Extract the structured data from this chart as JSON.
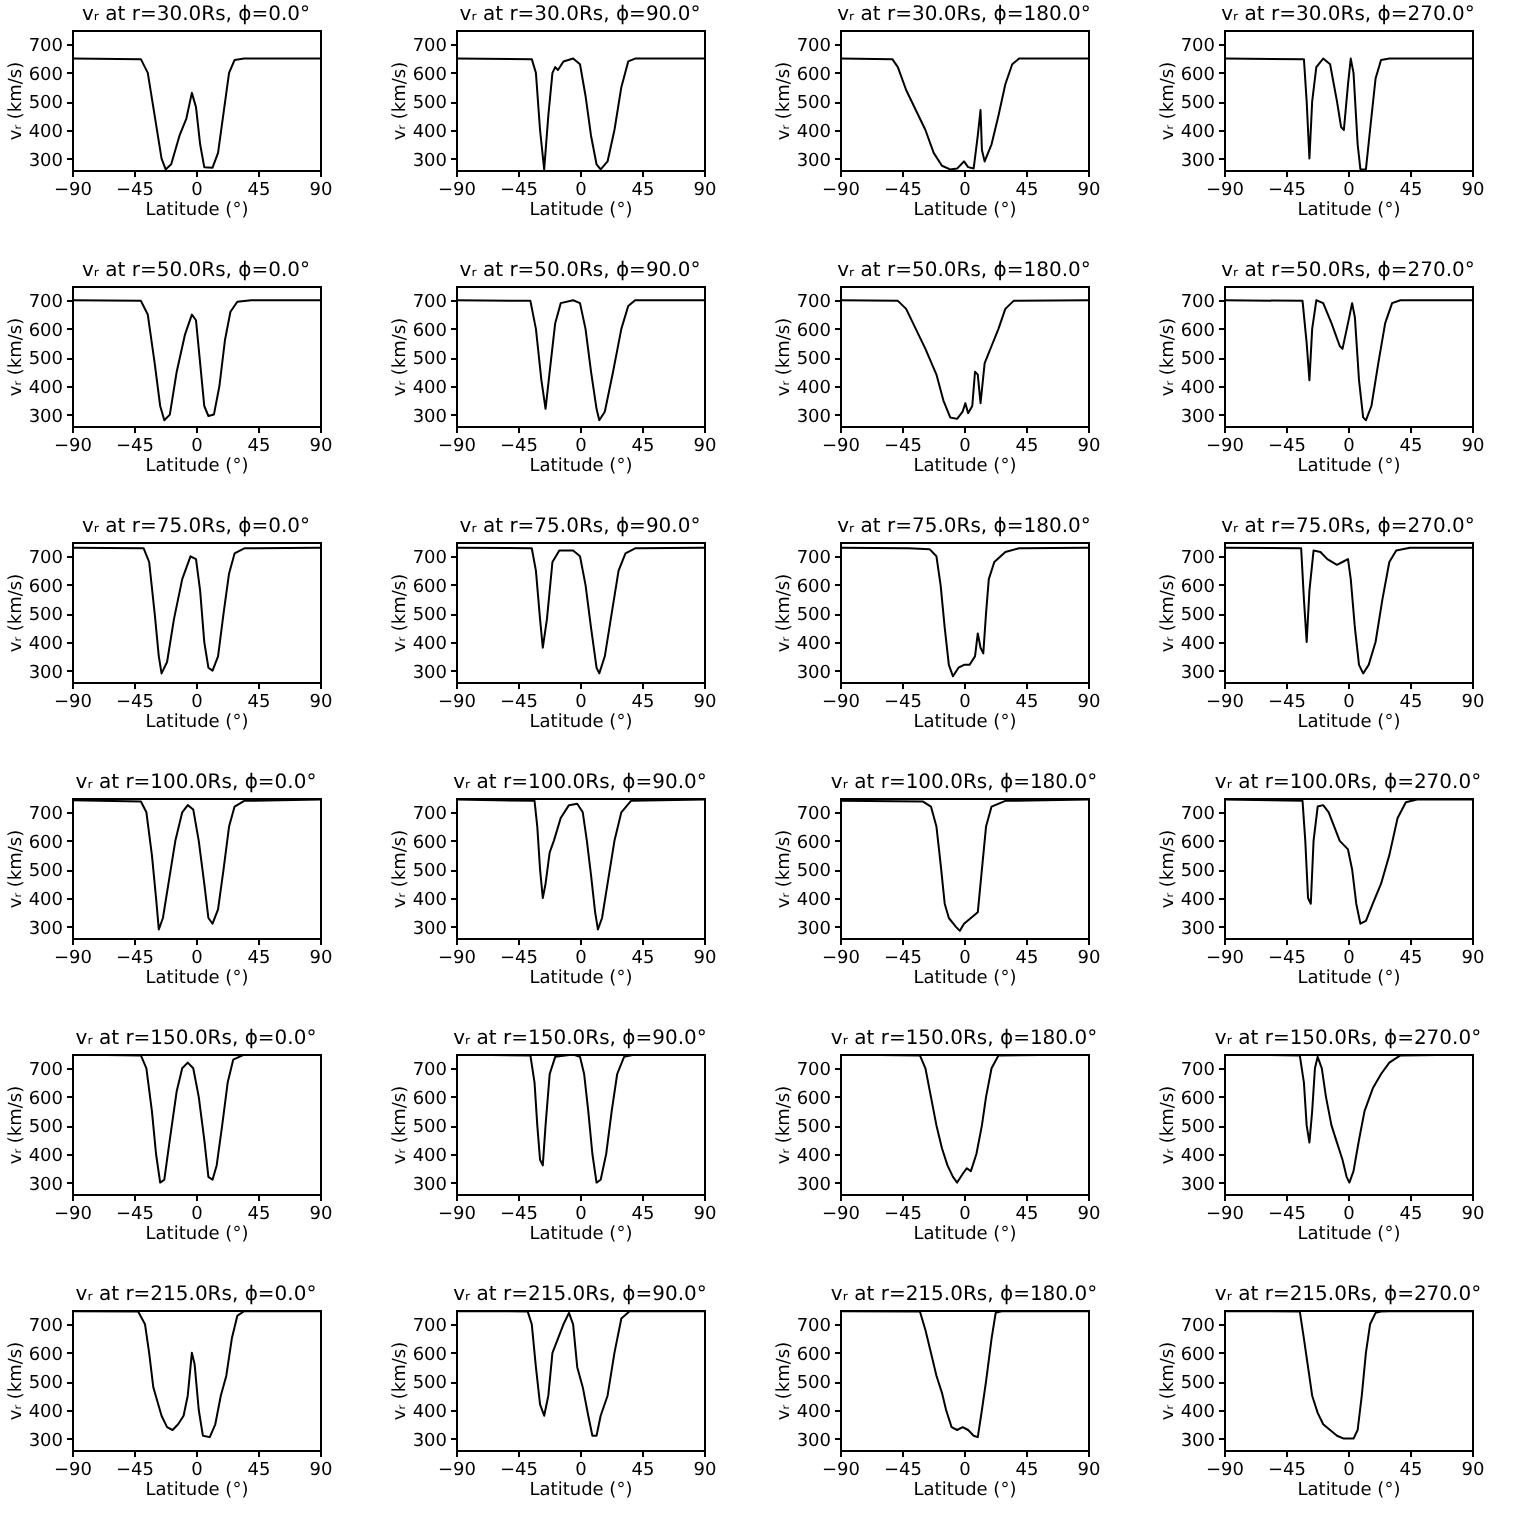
{
  "chart_data": [
    {
      "type": "line",
      "title": "vᵣ at r=30.0Rs, ϕ=0.0°",
      "xlabel": "Latitude (°)",
      "ylabel": "vᵣ (km/s)",
      "color": "#000000",
      "xlim": [
        -90,
        90
      ],
      "ylim": [
        260,
        750
      ],
      "xticks": [
        -90,
        -45,
        0,
        45,
        90
      ],
      "yticks": [
        300,
        400,
        500,
        600,
        700
      ],
      "x": [
        -90,
        -40,
        -35,
        -30,
        -25,
        -22,
        -18,
        -12,
        -7,
        -3,
        0,
        3,
        6,
        12,
        16,
        20,
        24,
        28,
        35,
        90
      ],
      "values": [
        650,
        648,
        600,
        450,
        300,
        262,
        280,
        380,
        440,
        530,
        480,
        350,
        270,
        268,
        320,
        460,
        600,
        645,
        650,
        650
      ]
    },
    {
      "type": "line",
      "title": "vᵣ at r=30.0Rs, ϕ=90.0°",
      "xlabel": "Latitude (°)",
      "ylabel": "vᵣ (km/s)",
      "color": "#000000",
      "xlim": [
        -90,
        90
      ],
      "ylim": [
        260,
        750
      ],
      "xticks": [
        -90,
        -45,
        0,
        45,
        90
      ],
      "yticks": [
        300,
        400,
        500,
        600,
        700
      ],
      "x": [
        -90,
        -35,
        -32,
        -29,
        -26,
        -23,
        -20,
        -18,
        -16,
        -12,
        -5,
        0,
        4,
        8,
        12,
        15,
        20,
        25,
        30,
        35,
        40,
        90
      ],
      "values": [
        650,
        648,
        600,
        400,
        262,
        450,
        600,
        620,
        610,
        640,
        650,
        630,
        520,
        380,
        280,
        262,
        290,
        400,
        550,
        640,
        650,
        650
      ]
    },
    {
      "type": "line",
      "title": "vᵣ at r=30.0Rs, ϕ=180.0°",
      "xlabel": "Latitude (°)",
      "ylabel": "vᵣ (km/s)",
      "color": "#000000",
      "xlim": [
        -90,
        90
      ],
      "ylim": [
        260,
        750
      ],
      "xticks": [
        -90,
        -45,
        0,
        45,
        90
      ],
      "yticks": [
        300,
        400,
        500,
        600,
        700
      ],
      "x": [
        -90,
        -52,
        -48,
        -42,
        -35,
        -28,
        -22,
        -16,
        -10,
        -5,
        0,
        3,
        7,
        10,
        12,
        13,
        15,
        20,
        25,
        30,
        35,
        40,
        90
      ],
      "values": [
        650,
        648,
        620,
        540,
        470,
        400,
        320,
        275,
        262,
        265,
        290,
        270,
        265,
        380,
        470,
        330,
        290,
        350,
        450,
        560,
        630,
        650,
        650
      ]
    },
    {
      "type": "line",
      "title": "vᵣ at r=30.0Rs, ϕ=270.0°",
      "xlabel": "Latitude (°)",
      "ylabel": "vᵣ (km/s)",
      "color": "#000000",
      "xlim": [
        -90,
        90
      ],
      "ylim": [
        260,
        750
      ],
      "xticks": [
        -90,
        -45,
        0,
        45,
        90
      ],
      "yticks": [
        300,
        400,
        500,
        600,
        700
      ],
      "x": [
        -90,
        -32,
        -30,
        -28,
        -26,
        -23,
        -18,
        -13,
        -8,
        -5,
        -3,
        0,
        2,
        4,
        7,
        9,
        13,
        16,
        20,
        24,
        30,
        90
      ],
      "values": [
        650,
        648,
        500,
        300,
        500,
        620,
        650,
        630,
        500,
        410,
        400,
        560,
        650,
        600,
        350,
        262,
        262,
        400,
        580,
        645,
        650,
        650
      ]
    },
    {
      "type": "line",
      "title": "vᵣ at r=50.0Rs, ϕ=0.0°",
      "xlabel": "Latitude (°)",
      "ylabel": "vᵣ (km/s)",
      "color": "#000000",
      "xlim": [
        -90,
        90
      ],
      "ylim": [
        260,
        750
      ],
      "xticks": [
        -90,
        -45,
        0,
        45,
        90
      ],
      "yticks": [
        300,
        400,
        500,
        600,
        700
      ],
      "x": [
        -90,
        -40,
        -35,
        -30,
        -26,
        -23,
        -19,
        -14,
        -8,
        -3,
        0,
        3,
        6,
        9,
        13,
        17,
        21,
        25,
        30,
        40,
        90
      ],
      "values": [
        700,
        698,
        650,
        480,
        330,
        280,
        300,
        450,
        580,
        650,
        630,
        480,
        330,
        295,
        300,
        400,
        560,
        660,
        695,
        700,
        700
      ]
    },
    {
      "type": "line",
      "title": "vᵣ at r=50.0Rs, ϕ=90.0°",
      "xlabel": "Latitude (°)",
      "ylabel": "vᵣ (km/s)",
      "color": "#000000",
      "xlim": [
        -90,
        90
      ],
      "ylim": [
        260,
        750
      ],
      "xticks": [
        -90,
        -45,
        0,
        45,
        90
      ],
      "yticks": [
        300,
        400,
        500,
        600,
        700
      ],
      "x": [
        -90,
        -36,
        -32,
        -28,
        -25,
        -22,
        -18,
        -14,
        -5,
        0,
        4,
        8,
        12,
        14,
        18,
        24,
        30,
        35,
        40,
        90
      ],
      "values": [
        700,
        698,
        600,
        420,
        320,
        450,
        620,
        690,
        700,
        690,
        600,
        450,
        320,
        280,
        310,
        450,
        600,
        680,
        700,
        700
      ]
    },
    {
      "type": "line",
      "title": "vᵣ at r=50.0Rs, ϕ=180.0°",
      "xlabel": "Latitude (°)",
      "ylabel": "vᵣ (km/s)",
      "color": "#000000",
      "xlim": [
        -90,
        90
      ],
      "ylim": [
        260,
        750
      ],
      "xticks": [
        -90,
        -45,
        0,
        45,
        90
      ],
      "yticks": [
        300,
        400,
        500,
        600,
        700
      ],
      "x": [
        -90,
        -48,
        -42,
        -35,
        -28,
        -20,
        -15,
        -10,
        -5,
        -1,
        1,
        3,
        6,
        8,
        10,
        12,
        15,
        20,
        25,
        30,
        36,
        90
      ],
      "values": [
        700,
        698,
        670,
        600,
        530,
        440,
        350,
        290,
        285,
        310,
        340,
        305,
        330,
        450,
        440,
        340,
        480,
        540,
        600,
        670,
        698,
        700
      ]
    },
    {
      "type": "line",
      "title": "vᵣ at r=50.0Rs, ϕ=270.0°",
      "xlabel": "Latitude (°)",
      "ylabel": "vᵣ (km/s)",
      "color": "#000000",
      "xlim": [
        -90,
        90
      ],
      "ylim": [
        260,
        750
      ],
      "xticks": [
        -90,
        -45,
        0,
        45,
        90
      ],
      "yticks": [
        300,
        400,
        500,
        600,
        700
      ],
      "x": [
        -90,
        -33,
        -30,
        -28,
        -26,
        -23,
        -18,
        -12,
        -6,
        -4,
        0,
        3,
        5,
        8,
        11,
        13,
        17,
        22,
        27,
        32,
        38,
        90
      ],
      "values": [
        700,
        698,
        550,
        420,
        600,
        700,
        690,
        620,
        540,
        530,
        620,
        690,
        640,
        420,
        290,
        280,
        330,
        480,
        620,
        690,
        700,
        700
      ]
    },
    {
      "type": "line",
      "title": "vᵣ at r=75.0Rs, ϕ=0.0°",
      "xlabel": "Latitude (°)",
      "ylabel": "vᵣ (km/s)",
      "color": "#000000",
      "xlim": [
        -90,
        90
      ],
      "ylim": [
        260,
        750
      ],
      "xticks": [
        -90,
        -45,
        0,
        45,
        90
      ],
      "yticks": [
        300,
        400,
        500,
        600,
        700
      ],
      "x": [
        -90,
        -38,
        -34,
        -30,
        -27,
        -25,
        -21,
        -16,
        -10,
        -4,
        0,
        3,
        6,
        9,
        12,
        16,
        20,
        24,
        28,
        35,
        90
      ],
      "values": [
        730,
        728,
        680,
        500,
        350,
        290,
        330,
        480,
        620,
        700,
        690,
        580,
        400,
        310,
        300,
        350,
        500,
        640,
        710,
        728,
        730
      ]
    },
    {
      "type": "line",
      "title": "vᵣ at r=75.0Rs, ϕ=90.0°",
      "xlabel": "Latitude (°)",
      "ylabel": "vᵣ (km/s)",
      "color": "#000000",
      "xlim": [
        -90,
        90
      ],
      "ylim": [
        260,
        750
      ],
      "xticks": [
        -90,
        -45,
        0,
        45,
        90
      ],
      "yticks": [
        300,
        400,
        500,
        600,
        700
      ],
      "x": [
        -90,
        -35,
        -32,
        -29,
        -27,
        -24,
        -20,
        -15,
        -5,
        0,
        4,
        8,
        12,
        14,
        18,
        23,
        28,
        33,
        40,
        90
      ],
      "values": [
        730,
        728,
        650,
        480,
        380,
        480,
        680,
        720,
        720,
        700,
        600,
        450,
        310,
        290,
        350,
        500,
        650,
        710,
        728,
        730
      ]
    },
    {
      "type": "line",
      "title": "vᵣ at r=75.0Rs, ϕ=180.0°",
      "xlabel": "Latitude (°)",
      "ylabel": "vᵣ (km/s)",
      "color": "#000000",
      "xlim": [
        -90,
        90
      ],
      "ylim": [
        260,
        750
      ],
      "xticks": [
        -90,
        -45,
        0,
        45,
        90
      ],
      "yticks": [
        300,
        400,
        500,
        600,
        700
      ],
      "x": [
        -90,
        -40,
        -25,
        -20,
        -17,
        -14,
        -11,
        -8,
        -4,
        0,
        4,
        8,
        10,
        12,
        14,
        16,
        18,
        22,
        30,
        40,
        90
      ],
      "values": [
        730,
        728,
        725,
        700,
        600,
        450,
        320,
        280,
        310,
        320,
        320,
        350,
        430,
        380,
        360,
        500,
        620,
        680,
        715,
        728,
        730
      ]
    },
    {
      "type": "line",
      "title": "vᵣ at r=75.0Rs, ϕ=270.0°",
      "xlabel": "Latitude (°)",
      "ylabel": "vᵣ (km/s)",
      "color": "#000000",
      "xlim": [
        -90,
        90
      ],
      "ylim": [
        260,
        750
      ],
      "xticks": [
        -90,
        -45,
        0,
        45,
        90
      ],
      "yticks": [
        300,
        400,
        500,
        600,
        700
      ],
      "x": [
        -90,
        -34,
        -32,
        -30,
        -28,
        -25,
        -20,
        -15,
        -8,
        -4,
        0,
        2,
        5,
        8,
        11,
        15,
        20,
        25,
        30,
        35,
        45,
        90
      ],
      "values": [
        730,
        728,
        550,
        400,
        580,
        720,
        715,
        690,
        670,
        680,
        690,
        620,
        450,
        320,
        290,
        320,
        400,
        550,
        680,
        720,
        730,
        730
      ]
    },
    {
      "type": "line",
      "title": "vᵣ at r=100.0Rs, ϕ=0.0°",
      "xlabel": "Latitude (°)",
      "ylabel": "vᵣ (km/s)",
      "color": "#000000",
      "xlim": [
        -90,
        90
      ],
      "ylim": [
        260,
        750
      ],
      "xticks": [
        -90,
        -45,
        0,
        45,
        90
      ],
      "yticks": [
        300,
        400,
        500,
        600,
        700
      ],
      "x": [
        -90,
        -40,
        -36,
        -32,
        -29,
        -27,
        -24,
        -20,
        -15,
        -10,
        -6,
        -2,
        2,
        6,
        9,
        12,
        16,
        20,
        24,
        28,
        35,
        90
      ],
      "values": [
        742,
        738,
        700,
        550,
        400,
        290,
        330,
        450,
        600,
        700,
        725,
        710,
        600,
        450,
        330,
        310,
        360,
        500,
        650,
        720,
        740,
        745
      ]
    },
    {
      "type": "line",
      "title": "vᵣ at r=100.0Rs, ϕ=90.0°",
      "xlabel": "Latitude (°)",
      "ylabel": "vᵣ (km/s)",
      "color": "#000000",
      "xlim": [
        -90,
        90
      ],
      "ylim": [
        260,
        750
      ],
      "xticks": [
        -90,
        -45,
        0,
        45,
        90
      ],
      "yticks": [
        300,
        400,
        500,
        600,
        700
      ],
      "x": [
        -90,
        -33,
        -31,
        -29,
        -27,
        -25,
        -22,
        -19,
        -14,
        -8,
        -2,
        2,
        5,
        8,
        11,
        13,
        16,
        20,
        25,
        30,
        37,
        90
      ],
      "values": [
        745,
        740,
        650,
        500,
        400,
        450,
        560,
        600,
        680,
        725,
        730,
        700,
        600,
        480,
        350,
        290,
        330,
        450,
        600,
        700,
        740,
        745
      ]
    },
    {
      "type": "line",
      "title": "vᵣ at r=100.0Rs, ϕ=180.0°",
      "xlabel": "Latitude (°)",
      "ylabel": "vᵣ (km/s)",
      "color": "#000000",
      "xlim": [
        -90,
        90
      ],
      "ylim": [
        260,
        750
      ],
      "xticks": [
        -90,
        -45,
        0,
        45,
        90
      ],
      "yticks": [
        300,
        400,
        500,
        600,
        700
      ],
      "x": [
        -90,
        -30,
        -24,
        -20,
        -17,
        -14,
        -11,
        -6,
        -3,
        0,
        5,
        10,
        13,
        16,
        20,
        30,
        90
      ],
      "values": [
        740,
        738,
        720,
        650,
        520,
        380,
        330,
        300,
        285,
        310,
        330,
        350,
        500,
        650,
        720,
        740,
        745
      ]
    },
    {
      "type": "line",
      "title": "vᵣ at r=100.0Rs, ϕ=270.0°",
      "xlabel": "Latitude (°)",
      "ylabel": "vᵣ (km/s)",
      "color": "#000000",
      "xlim": [
        -90,
        90
      ],
      "ylim": [
        260,
        750
      ],
      "xticks": [
        -90,
        -45,
        0,
        45,
        90
      ],
      "yticks": [
        300,
        400,
        500,
        600,
        700
      ],
      "x": [
        -90,
        -33,
        -31,
        -29,
        -27,
        -25,
        -22,
        -18,
        -14,
        -10,
        -6,
        0,
        3,
        6,
        9,
        13,
        18,
        24,
        30,
        36,
        42,
        50,
        90
      ],
      "values": [
        745,
        740,
        600,
        400,
        380,
        600,
        720,
        725,
        700,
        650,
        600,
        570,
        500,
        380,
        310,
        320,
        380,
        450,
        550,
        680,
        735,
        745,
        745
      ]
    },
    {
      "type": "line",
      "title": "vᵣ at r=150.0Rs, ϕ=0.0°",
      "xlabel": "Latitude (°)",
      "ylabel": "vᵣ (km/s)",
      "color": "#000000",
      "xlim": [
        -90,
        90
      ],
      "ylim": [
        260,
        750
      ],
      "xticks": [
        -90,
        -45,
        0,
        45,
        90
      ],
      "yticks": [
        300,
        400,
        500,
        600,
        700
      ],
      "x": [
        -90,
        -40,
        -36,
        -32,
        -29,
        -26,
        -23,
        -19,
        -14,
        -10,
        -6,
        -2,
        2,
        6,
        9,
        12,
        15,
        19,
        23,
        27,
        35,
        90
      ],
      "values": [
        748,
        745,
        700,
        550,
        400,
        300,
        310,
        450,
        620,
        700,
        720,
        700,
        600,
        450,
        320,
        310,
        360,
        500,
        650,
        730,
        748,
        748
      ]
    },
    {
      "type": "line",
      "title": "vᵣ at r=150.0Rs, ϕ=90.0°",
      "xlabel": "Latitude (°)",
      "ylabel": "vᵣ (km/s)",
      "color": "#000000",
      "xlim": [
        -90,
        90
      ],
      "ylim": [
        260,
        750
      ],
      "xticks": [
        -90,
        -45,
        0,
        45,
        90
      ],
      "yticks": [
        300,
        400,
        500,
        600,
        700
      ],
      "x": [
        -90,
        -36,
        -33,
        -31,
        -29,
        -27,
        -25,
        -22,
        -18,
        -5,
        0,
        3,
        6,
        9,
        12,
        15,
        19,
        23,
        27,
        32,
        40,
        90
      ],
      "values": [
        748,
        745,
        650,
        500,
        380,
        360,
        500,
        680,
        740,
        748,
        740,
        680,
        550,
        400,
        300,
        310,
        400,
        550,
        680,
        740,
        748,
        748
      ]
    },
    {
      "type": "line",
      "title": "vᵣ at r=150.0Rs, ϕ=180.0°",
      "xlabel": "Latitude (°)",
      "ylabel": "vᵣ (km/s)",
      "color": "#000000",
      "xlim": [
        -90,
        90
      ],
      "ylim": [
        260,
        750
      ],
      "xticks": [
        -90,
        -45,
        0,
        45,
        90
      ],
      "yticks": [
        300,
        400,
        500,
        600,
        700
      ],
      "x": [
        -90,
        -32,
        -28,
        -24,
        -20,
        -16,
        -12,
        -8,
        -5,
        -1,
        2,
        5,
        9,
        13,
        16,
        20,
        25,
        90
      ],
      "values": [
        748,
        745,
        700,
        600,
        500,
        420,
        360,
        320,
        300,
        330,
        350,
        340,
        400,
        500,
        600,
        700,
        745,
        748
      ]
    },
    {
      "type": "line",
      "title": "vᵣ at r=150.0Rs, ϕ=270.0°",
      "xlabel": "Latitude (°)",
      "ylabel": "vᵣ (km/s)",
      "color": "#000000",
      "xlim": [
        -90,
        90
      ],
      "ylim": [
        260,
        750
      ],
      "xticks": [
        -90,
        -45,
        0,
        45,
        90
      ],
      "yticks": [
        300,
        400,
        500,
        600,
        700
      ],
      "x": [
        -90,
        -35,
        -32,
        -30,
        -28,
        -26,
        -24,
        -22,
        -19,
        -16,
        -12,
        -8,
        -4,
        -1,
        1,
        4,
        8,
        12,
        18,
        24,
        30,
        38,
        90
      ],
      "values": [
        748,
        745,
        650,
        500,
        440,
        550,
        700,
        740,
        700,
        600,
        500,
        440,
        380,
        320,
        300,
        340,
        450,
        550,
        630,
        680,
        720,
        745,
        748
      ]
    },
    {
      "type": "line",
      "title": "vᵣ at r=215.0Rs, ϕ=0.0°",
      "xlabel": "Latitude (°)",
      "ylabel": "vᵣ (km/s)",
      "color": "#000000",
      "xlim": [
        -90,
        90
      ],
      "ylim": [
        260,
        750
      ],
      "xticks": [
        -90,
        -45,
        0,
        45,
        90
      ],
      "yticks": [
        300,
        400,
        500,
        600,
        700
      ],
      "x": [
        -90,
        -42,
        -37,
        -34,
        -31,
        -28,
        -25,
        -21,
        -17,
        -13,
        -9,
        -6,
        -3,
        -1,
        2,
        5,
        10,
        14,
        18,
        22,
        26,
        30,
        35,
        90
      ],
      "values": [
        746,
        745,
        700,
        600,
        480,
        430,
        380,
        340,
        330,
        350,
        380,
        450,
        600,
        560,
        400,
        310,
        305,
        350,
        450,
        520,
        650,
        730,
        746,
        746
      ]
    },
    {
      "type": "line",
      "title": "vᵣ at r=215.0Rs, ϕ=90.0°",
      "xlabel": "Latitude (°)",
      "ylabel": "vᵣ (km/s)",
      "color": "#000000",
      "xlim": [
        -90,
        90
      ],
      "ylim": [
        260,
        750
      ],
      "xticks": [
        -90,
        -45,
        0,
        45,
        90
      ],
      "yticks": [
        300,
        400,
        500,
        600,
        700
      ],
      "x": [
        -90,
        -38,
        -35,
        -32,
        -29,
        -26,
        -23,
        -20,
        -16,
        -12,
        -8,
        -5,
        -2,
        2,
        6,
        9,
        12,
        15,
        20,
        25,
        30,
        36,
        90
      ],
      "values": [
        746,
        745,
        700,
        550,
        420,
        380,
        450,
        600,
        650,
        700,
        740,
        700,
        550,
        480,
        380,
        310,
        310,
        380,
        450,
        600,
        720,
        746,
        746
      ]
    },
    {
      "type": "line",
      "title": "vᵣ at r=215.0Rs, ϕ=180.0°",
      "xlabel": "Latitude (°)",
      "ylabel": "vᵣ (km/s)",
      "color": "#000000",
      "xlim": [
        -90,
        90
      ],
      "ylim": [
        260,
        750
      ],
      "xticks": [
        -90,
        -45,
        0,
        45,
        90
      ],
      "yticks": [
        300,
        400,
        500,
        600,
        700
      ],
      "x": [
        -90,
        -32,
        -28,
        -24,
        -20,
        -16,
        -13,
        -9,
        -5,
        -1,
        3,
        7,
        10,
        13,
        16,
        20,
        23,
        28,
        90
      ],
      "values": [
        746,
        745,
        680,
        600,
        520,
        460,
        400,
        340,
        330,
        340,
        330,
        310,
        305,
        400,
        500,
        650,
        740,
        746,
        746
      ]
    },
    {
      "type": "line",
      "title": "vᵣ at r=215.0Rs, ϕ=270.0°",
      "xlabel": "Latitude (°)",
      "ylabel": "vᵣ (km/s)",
      "color": "#000000",
      "xlim": [
        -90,
        90
      ],
      "ylim": [
        260,
        750
      ],
      "xticks": [
        -90,
        -45,
        0,
        45,
        90
      ],
      "yticks": [
        300,
        400,
        500,
        600,
        700
      ],
      "x": [
        -90,
        -35,
        -32,
        -29,
        -26,
        -22,
        -18,
        -13,
        -8,
        -3,
        4,
        7,
        10,
        13,
        16,
        20,
        24,
        30,
        90
      ],
      "values": [
        746,
        745,
        650,
        550,
        450,
        390,
        350,
        330,
        310,
        300,
        300,
        330,
        450,
        600,
        700,
        740,
        745,
        746,
        746
      ]
    }
  ]
}
